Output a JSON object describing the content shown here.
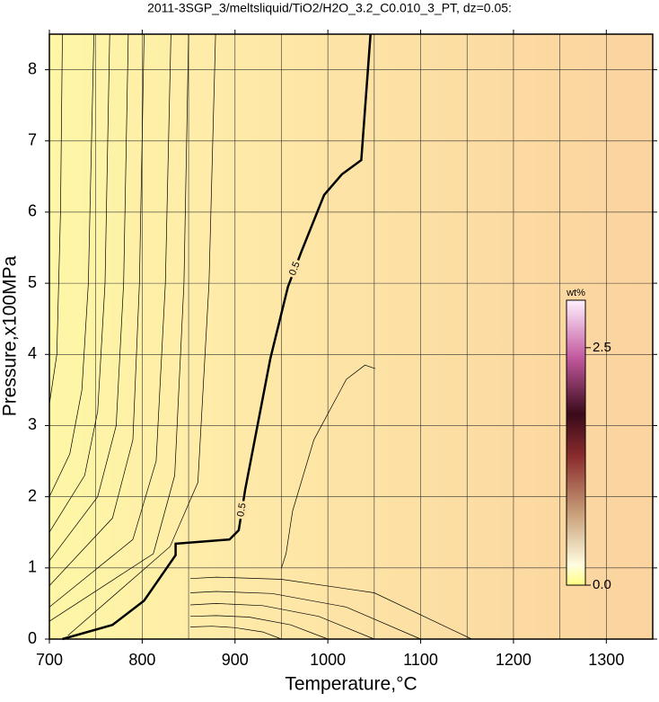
{
  "chart_data": {
    "type": "contour",
    "title": "2011-3SGP_3/meltsliquid/TiO2/H2O_3.2_C0.010_3_PT, dz=0.05:",
    "x_label": "Temperature,°C",
    "y_label": "Pressure,x100MPa",
    "xlim": [
      700,
      1350
    ],
    "ylim": [
      0,
      8.5
    ],
    "xticks": [
      700,
      800,
      900,
      1000,
      1100,
      1200,
      1300
    ],
    "yticks": [
      0,
      1,
      2,
      3,
      4,
      5,
      6,
      7,
      8
    ],
    "xgrid": [
      750,
      850,
      950,
      1050,
      1150,
      1250
    ],
    "grid": true,
    "contours": [
      {
        "level": 0.5,
        "bold": true,
        "x": [
          714,
          768,
          802,
          836,
          836,
          894,
          904,
          911,
          938,
          957,
          972,
          996,
          1015,
          1036,
          1046
        ],
        "y": [
          0,
          0.2,
          0.54,
          1.18,
          1.34,
          1.4,
          1.53,
          2.1,
          3.94,
          4.95,
          5.46,
          6.24,
          6.53,
          6.73,
          8.5
        ]
      },
      {
        "x": [
          1051,
          1040,
          1020,
          985,
          962,
          955,
          950
        ],
        "y": [
          3.8,
          3.85,
          3.65,
          2.8,
          1.8,
          1.2,
          1.0
        ]
      },
      {
        "x": [
          714,
          712,
          708,
          700
        ],
        "y": [
          8.5,
          6,
          4,
          3.3
        ]
      },
      {
        "x": [
          748,
          742,
          735,
          722,
          700
        ],
        "y": [
          8.5,
          5,
          3.5,
          2.6,
          2.0
        ]
      },
      {
        "x": [
          765,
          760,
          752,
          738,
          700
        ],
        "y": [
          8.5,
          5,
          3.2,
          2.3,
          1.5
        ]
      },
      {
        "x": [
          785,
          780,
          772,
          752,
          700
        ],
        "y": [
          8.5,
          5,
          3.0,
          2.0,
          1.1
        ]
      },
      {
        "x": [
          802,
          797,
          790,
          768,
          700
        ],
        "y": [
          8.5,
          5,
          2.8,
          1.7,
          0.75
        ]
      },
      {
        "x": [
          831,
          825,
          815,
          790,
          700
        ],
        "y": [
          8.5,
          5,
          2.5,
          1.4,
          0.45
        ]
      },
      {
        "x": [
          850,
          845,
          835,
          812,
          700
        ],
        "y": [
          8.5,
          5,
          2.3,
          1.2,
          0.25
        ]
      },
      {
        "x": [
          879,
          872,
          860,
          830,
          720
        ],
        "y": [
          8.5,
          5,
          2.2,
          1.3,
          0.05
        ]
      },
      {
        "x": [
          852,
          880,
          950,
          1050,
          1155
        ],
        "y": [
          0.85,
          0.87,
          0.84,
          0.65,
          0
        ]
      },
      {
        "x": [
          852,
          880,
          940,
          1020,
          1100
        ],
        "y": [
          0.65,
          0.67,
          0.64,
          0.45,
          0
        ]
      },
      {
        "x": [
          852,
          880,
          930,
          990,
          1050
        ],
        "y": [
          0.48,
          0.5,
          0.47,
          0.32,
          0
        ]
      },
      {
        "x": [
          852,
          880,
          915,
          960,
          1000
        ],
        "y": [
          0.32,
          0.33,
          0.31,
          0.2,
          0
        ]
      },
      {
        "x": [
          852,
          875,
          900,
          930,
          950
        ],
        "y": [
          0.17,
          0.18,
          0.16,
          0.1,
          0
        ]
      }
    ],
    "colorbar": {
      "label": "wt%",
      "lim": [
        0,
        3.0
      ],
      "ticks": [
        {
          "value": 0,
          "label": "0.0"
        },
        2.5
      ]
    }
  }
}
